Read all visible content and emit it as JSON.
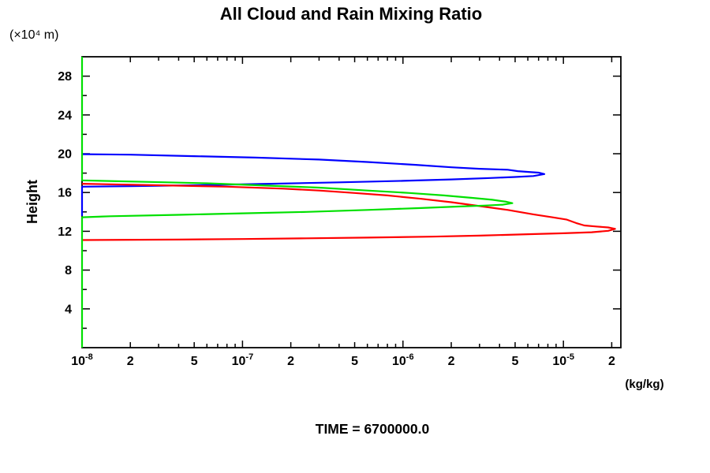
{
  "chart_data": {
    "type": "line",
    "title": "All Cloud and Rain Mixing Ratio",
    "time_label": "TIME = 6700000.0",
    "x_axis": {
      "label": "(kg/kg)",
      "scale": "log",
      "min": 1e-08,
      "max": 2.28e-05,
      "decade_exponents": [
        -8,
        -7,
        -6,
        -5
      ],
      "labeled_multipliers": [
        1,
        2,
        5
      ]
    },
    "y_axis": {
      "label": "Height",
      "unit_label": "(×10⁴ m)",
      "min": 0,
      "max": 30,
      "major_ticks": [
        4,
        8,
        12,
        16,
        20,
        24,
        28
      ],
      "minor_tick_step": 2
    },
    "grid": false,
    "legend": "none",
    "series": [
      {
        "name": "blue",
        "color": "#0000ff",
        "points": [
          [
            1e-08,
            19.95
          ],
          [
            2e-08,
            19.9
          ],
          [
            5e-08,
            19.75
          ],
          [
            1.2e-07,
            19.6
          ],
          [
            3e-07,
            19.4
          ],
          [
            6e-07,
            19.15
          ],
          [
            1.2e-06,
            18.85
          ],
          [
            2e-06,
            18.6
          ],
          [
            3e-06,
            18.45
          ],
          [
            4.5e-06,
            18.35
          ],
          [
            5.2e-06,
            18.2
          ],
          [
            6.3e-06,
            18.1
          ],
          [
            7e-06,
            18.05
          ],
          [
            7.6e-06,
            17.9
          ],
          [
            6.5e-06,
            17.7
          ],
          [
            5e-06,
            17.6
          ],
          [
            3.5e-06,
            17.5
          ],
          [
            2e-06,
            17.35
          ],
          [
            1e-06,
            17.2
          ],
          [
            4e-07,
            17.05
          ],
          [
            1.5e-07,
            16.9
          ],
          [
            5e-08,
            16.75
          ],
          [
            2e-08,
            16.65
          ],
          [
            1e-08,
            16.6
          ],
          [
            1e-08,
            13.6
          ]
        ]
      },
      {
        "name": "red",
        "color": "#ff0000",
        "points": [
          [
            1e-08,
            16.9
          ],
          [
            3e-08,
            16.75
          ],
          [
            8e-08,
            16.6
          ],
          [
            1.8e-07,
            16.4
          ],
          [
            3e-07,
            16.2
          ],
          [
            5e-07,
            15.95
          ],
          [
            8e-07,
            15.7
          ],
          [
            1.3e-06,
            15.35
          ],
          [
            2e-06,
            15.0
          ],
          [
            3e-06,
            14.6
          ],
          [
            4.5e-06,
            14.2
          ],
          [
            6.5e-06,
            13.75
          ],
          [
            8.5e-06,
            13.45
          ],
          [
            1.05e-05,
            13.2
          ],
          [
            1.2e-05,
            12.85
          ],
          [
            1.35e-05,
            12.6
          ],
          [
            1.6e-05,
            12.5
          ],
          [
            1.9e-05,
            12.4
          ],
          [
            2.1e-05,
            12.25
          ],
          [
            1.9e-05,
            12.05
          ],
          [
            1.5e-05,
            11.9
          ],
          [
            1e-05,
            11.8
          ],
          [
            6e-06,
            11.7
          ],
          [
            3e-06,
            11.55
          ],
          [
            1.5e-06,
            11.45
          ],
          [
            6e-07,
            11.35
          ],
          [
            2.5e-07,
            11.28
          ],
          [
            1e-07,
            11.2
          ],
          [
            4e-08,
            11.15
          ],
          [
            1e-08,
            11.1
          ]
        ]
      },
      {
        "name": "green",
        "color": "#00e000",
        "points": [
          [
            1e-08,
            30
          ],
          [
            1e-08,
            17.25
          ],
          [
            2.5e-08,
            17.1
          ],
          [
            6e-08,
            16.95
          ],
          [
            1.5e-07,
            16.7
          ],
          [
            3e-07,
            16.5
          ],
          [
            6e-07,
            16.2
          ],
          [
            1.1e-06,
            15.95
          ],
          [
            1.8e-06,
            15.7
          ],
          [
            2.7e-06,
            15.45
          ],
          [
            3.6e-06,
            15.25
          ],
          [
            4.4e-06,
            15.05
          ],
          [
            4.8e-06,
            14.9
          ],
          [
            4.2e-06,
            14.75
          ],
          [
            3.2e-06,
            14.65
          ],
          [
            2.2e-06,
            14.55
          ],
          [
            1.3e-06,
            14.4
          ],
          [
            6e-07,
            14.2
          ],
          [
            2.5e-07,
            14.0
          ],
          [
            1e-07,
            13.85
          ],
          [
            4e-08,
            13.7
          ],
          [
            1.5e-08,
            13.55
          ],
          [
            1e-08,
            13.45
          ],
          [
            1e-08,
            0
          ]
        ]
      }
    ]
  }
}
